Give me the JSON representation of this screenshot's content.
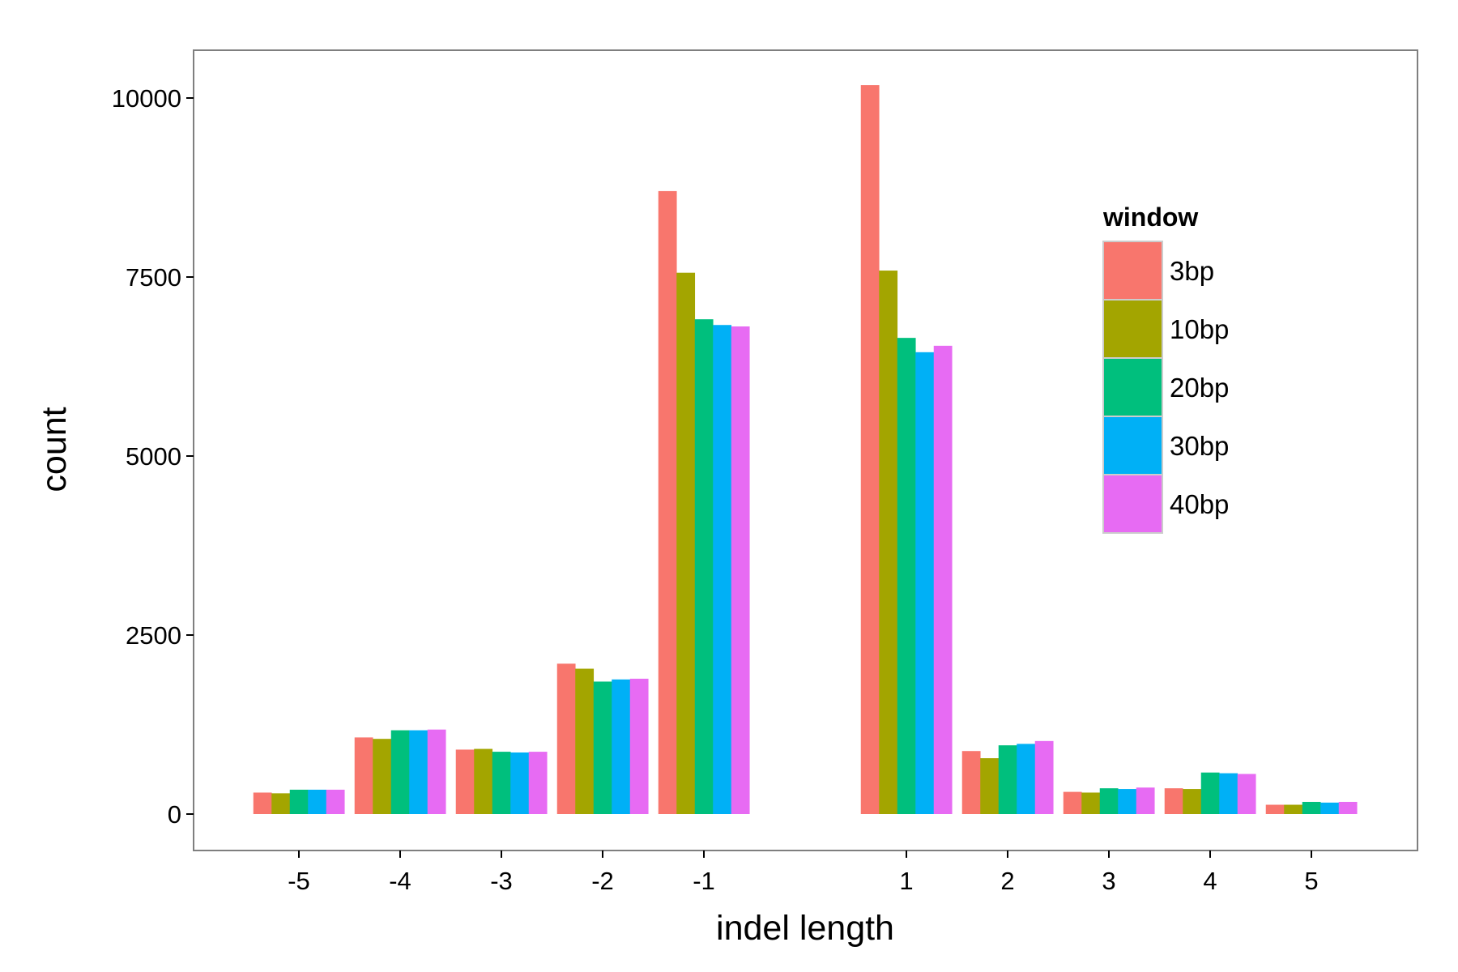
{
  "chart_data": {
    "type": "bar",
    "xlabel": "indel length",
    "ylabel": "count",
    "ylim": [
      -500,
      10700
    ],
    "y_ticks": [
      0,
      2500,
      5000,
      7500,
      10000
    ],
    "y_tick_labels": [
      "0",
      "2500",
      "5000",
      "7500",
      "10000"
    ],
    "categories": [
      "-5",
      "-4",
      "-3",
      "-2",
      "-1",
      "1",
      "2",
      "3",
      "4",
      "5"
    ],
    "category_positions": [
      -5,
      -4,
      -3,
      -2,
      -1,
      1,
      2,
      3,
      4,
      5
    ],
    "xlim": [
      -6,
      6
    ],
    "grid": false,
    "legend": {
      "title": "window",
      "position": "top-right"
    },
    "series": [
      {
        "name": "3bp",
        "color": "#F8766D",
        "values": [
          300,
          1070,
          900,
          2100,
          8700,
          10180,
          880,
          310,
          360,
          130
        ]
      },
      {
        "name": "10bp",
        "color": "#A3A500",
        "values": [
          290,
          1050,
          910,
          2030,
          7560,
          7590,
          780,
          300,
          350,
          130
        ]
      },
      {
        "name": "20bp",
        "color": "#00BF7D",
        "values": [
          340,
          1170,
          870,
          1850,
          6910,
          6650,
          960,
          360,
          580,
          170
        ]
      },
      {
        "name": "30bp",
        "color": "#00B0F6",
        "values": [
          340,
          1170,
          860,
          1880,
          6830,
          6450,
          980,
          350,
          570,
          160
        ]
      },
      {
        "name": "40bp",
        "color": "#E76BF3",
        "values": [
          340,
          1180,
          870,
          1890,
          6810,
          6540,
          1020,
          370,
          560,
          170
        ]
      }
    ]
  }
}
